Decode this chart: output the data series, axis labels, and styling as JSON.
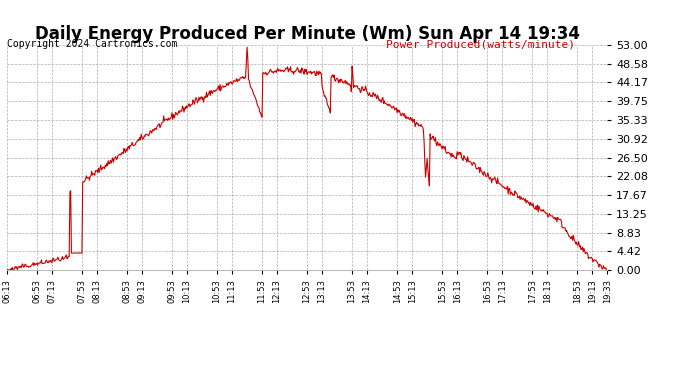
{
  "title": "Daily Energy Produced Per Minute (Wm) Sun Apr 14 19:34",
  "copyright": "Copyright 2024 Cartronics.com",
  "legend_label": "Power Produced(watts/minute)",
  "line_color": "#cc0000",
  "background_color": "#ffffff",
  "grid_color": "#999999",
  "yticks": [
    0.0,
    4.42,
    8.83,
    13.25,
    17.67,
    22.08,
    26.5,
    30.92,
    35.33,
    39.75,
    44.17,
    48.58,
    53.0
  ],
  "ymax": 53.0,
  "ymin": 0.0,
  "xtick_labels": [
    "06:13",
    "06:53",
    "07:13",
    "07:53",
    "08:13",
    "08:53",
    "09:13",
    "09:53",
    "10:13",
    "10:53",
    "11:13",
    "11:53",
    "12:13",
    "12:53",
    "13:13",
    "13:53",
    "14:13",
    "14:53",
    "15:13",
    "15:53",
    "16:13",
    "16:53",
    "17:13",
    "17:53",
    "18:13",
    "18:53",
    "19:13",
    "19:33"
  ],
  "title_fontsize": 12,
  "copyright_fontsize": 7,
  "legend_fontsize": 8,
  "ytick_fontsize": 8,
  "xtick_fontsize": 6
}
